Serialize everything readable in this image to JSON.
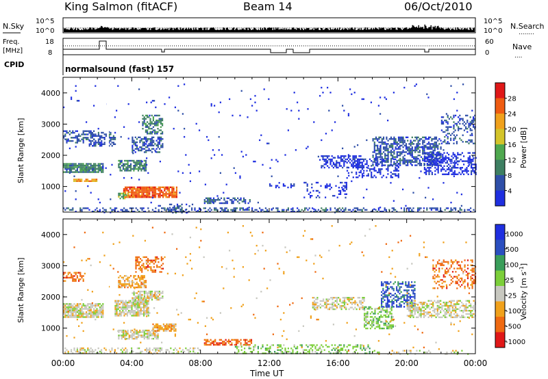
{
  "header": {
    "station": "King Salmon (fitACF)",
    "beam": "Beam 14",
    "date": "06/Oct/2010"
  },
  "strip": {
    "nsky_label": "N.Sky",
    "nsearch_label": "N.Search",
    "nsearch_dots": "........",
    "freq_label": "Freq.",
    "freq_unit": "[MHz]",
    "nave_label": "Nave",
    "nave_dots": "....",
    "cpid_label": "CPID",
    "noise_ticks": [
      "10^5",
      "10^0"
    ],
    "noise_ticks_right": [
      "10^5",
      "10^0"
    ],
    "freq_ticks": [
      "18",
      "8"
    ],
    "nave_ticks": [
      "60",
      "0"
    ],
    "cpid_text": "normalsound (fast) 157"
  },
  "colors": {
    "power": [
      "#1f2fe0",
      "#2f4fa8",
      "#3e7f62",
      "#4fa84f",
      "#d4c42a",
      "#f0a11c",
      "#ef5c12",
      "#e01818"
    ],
    "velocity": [
      "#1f2fe0",
      "#2b4fc0",
      "#3a9e5a",
      "#7ccf3a",
      "#c8c8c0",
      "#f0a11c",
      "#ef6a12",
      "#e01818"
    ]
  },
  "chart_data": [
    {
      "type": "heatmap",
      "name": "power",
      "xlabel": "",
      "ylabel": "Slant Range [km]",
      "colorbar_label": "Power [dB]",
      "colorbar_ticks": [
        "28",
        "24",
        "20",
        "16",
        "12",
        "8",
        "4"
      ],
      "x_ticks": [
        "00:00",
        "04:00",
        "08:00",
        "12:00",
        "16:00",
        "20:00",
        "00:00"
      ],
      "y_ticks": [
        "1000",
        "2000",
        "3000",
        "4000"
      ],
      "xlim": [
        0,
        24
      ],
      "ylim": [
        180,
        4500
      ],
      "regions": [
        {
          "x": [
            0.0,
            2.3
          ],
          "y": [
            1450,
            1750
          ],
          "level": 2,
          "density": 0.85
        },
        {
          "x": [
            0.6,
            2.0
          ],
          "y": [
            1150,
            1250
          ],
          "level": 5,
          "density": 0.8
        },
        {
          "x": [
            0.0,
            1.8
          ],
          "y": [
            2400,
            2800
          ],
          "level": 1,
          "density": 0.45
        },
        {
          "x": [
            1.5,
            3.0
          ],
          "y": [
            2300,
            2750
          ],
          "level": 1,
          "density": 0.5
        },
        {
          "x": [
            3.2,
            4.8
          ],
          "y": [
            1500,
            1850
          ],
          "level": 2,
          "density": 0.7
        },
        {
          "x": [
            4.0,
            5.8
          ],
          "y": [
            2100,
            2600
          ],
          "level": 1,
          "density": 0.55
        },
        {
          "x": [
            4.6,
            5.8
          ],
          "y": [
            2700,
            3300
          ],
          "level": 2,
          "density": 0.45
        },
        {
          "x": [
            3.5,
            6.6
          ],
          "y": [
            650,
            1000
          ],
          "level": 6,
          "density": 0.85
        },
        {
          "x": [
            3.2,
            3.8
          ],
          "y": [
            600,
            800
          ],
          "level": 3,
          "density": 0.6
        },
        {
          "x": [
            6.0,
            7.5
          ],
          "y": [
            180,
            450
          ],
          "level": 1,
          "density": 0.35
        },
        {
          "x": [
            8.2,
            11.0
          ],
          "y": [
            450,
            650
          ],
          "level": 1,
          "density": 0.55
        },
        {
          "x": [
            0.0,
            24.0
          ],
          "y": [
            180,
            330
          ],
          "level": 1,
          "density": 0.4
        },
        {
          "x": [
            12.0,
            13.5
          ],
          "y": [
            950,
            1100
          ],
          "level": 0,
          "density": 0.25
        },
        {
          "x": [
            14.0,
            16.5
          ],
          "y": [
            650,
            1150
          ],
          "level": 0,
          "density": 0.18
        },
        {
          "x": [
            15.0,
            17.5
          ],
          "y": [
            1600,
            2000
          ],
          "level": 0,
          "density": 0.45
        },
        {
          "x": [
            16.5,
            19.5
          ],
          "y": [
            1300,
            1900
          ],
          "level": 0,
          "density": 0.35
        },
        {
          "x": [
            18.0,
            22.0
          ],
          "y": [
            1700,
            2600
          ],
          "level": 1,
          "density": 0.55
        },
        {
          "x": [
            21.0,
            24.0
          ],
          "y": [
            1400,
            2100
          ],
          "level": 0,
          "density": 0.45
        },
        {
          "x": [
            22.0,
            24.0
          ],
          "y": [
            2400,
            3300
          ],
          "level": 1,
          "density": 0.35
        },
        {
          "x": [
            0.0,
            24.0
          ],
          "y": [
            180,
            4300
          ],
          "level": 0,
          "density": 0.012
        }
      ]
    },
    {
      "type": "heatmap",
      "name": "velocity",
      "xlabel": "Time UT",
      "ylabel": "Slant Range [km]",
      "colorbar_label": "Velocity [m s^-1]",
      "colorbar_ticks": [
        "1000",
        "500",
        "100",
        "25",
        "-25",
        "-100",
        "-500",
        "-1000"
      ],
      "x_ticks": [
        "00:00",
        "04:00",
        "08:00",
        "12:00",
        "16:00",
        "20:00",
        "00:00"
      ],
      "y_ticks": [
        "1000",
        "2000",
        "3000",
        "4000"
      ],
      "xlim": [
        0,
        24
      ],
      "ylim": [
        180,
        4500
      ],
      "regions": [
        {
          "x": [
            0.0,
            2.3
          ],
          "y": [
            1350,
            1800
          ],
          "level": 4,
          "density": 0.85
        },
        {
          "x": [
            3.0,
            5.0
          ],
          "y": [
            1400,
            1900
          ],
          "level": 4,
          "density": 0.8
        },
        {
          "x": [
            4.0,
            5.8
          ],
          "y": [
            1900,
            2200
          ],
          "level": 4,
          "density": 0.7
        },
        {
          "x": [
            0.0,
            1.2
          ],
          "y": [
            2500,
            2800
          ],
          "level": 6,
          "density": 0.5
        },
        {
          "x": [
            3.2,
            4.8
          ],
          "y": [
            2300,
            2700
          ],
          "level": 5,
          "density": 0.55
        },
        {
          "x": [
            4.2,
            5.8
          ],
          "y": [
            2800,
            3300
          ],
          "level": 6,
          "density": 0.4
        },
        {
          "x": [
            3.2,
            5.5
          ],
          "y": [
            650,
            950
          ],
          "level": 4,
          "density": 0.75
        },
        {
          "x": [
            5.2,
            6.6
          ],
          "y": [
            900,
            1150
          ],
          "level": 5,
          "density": 0.7
        },
        {
          "x": [
            8.2,
            11.0
          ],
          "y": [
            480,
            650
          ],
          "level": 6,
          "density": 0.6
        },
        {
          "x": [
            0.0,
            8.0
          ],
          "y": [
            180,
            380
          ],
          "level": 4,
          "density": 0.4
        },
        {
          "x": [
            10.0,
            18.0
          ],
          "y": [
            180,
            480
          ],
          "level": 3,
          "density": 0.35
        },
        {
          "x": [
            18.0,
            24.0
          ],
          "y": [
            180,
            300
          ],
          "level": 4,
          "density": 0.2
        },
        {
          "x": [
            14.5,
            17.5
          ],
          "y": [
            1600,
            2000
          ],
          "level": 4,
          "density": 0.55
        },
        {
          "x": [
            17.5,
            19.2
          ],
          "y": [
            1000,
            1700
          ],
          "level": 3,
          "density": 0.5
        },
        {
          "x": [
            18.5,
            20.5
          ],
          "y": [
            1700,
            2500
          ],
          "level": 1,
          "density": 0.5
        },
        {
          "x": [
            20.0,
            24.0
          ],
          "y": [
            1350,
            1900
          ],
          "level": 4,
          "density": 0.55
        },
        {
          "x": [
            21.5,
            24.0
          ],
          "y": [
            2300,
            3200
          ],
          "level": 6,
          "density": 0.35
        },
        {
          "x": [
            0.0,
            24.0
          ],
          "y": [
            180,
            4300
          ],
          "level": 5,
          "density": 0.012
        }
      ]
    }
  ]
}
